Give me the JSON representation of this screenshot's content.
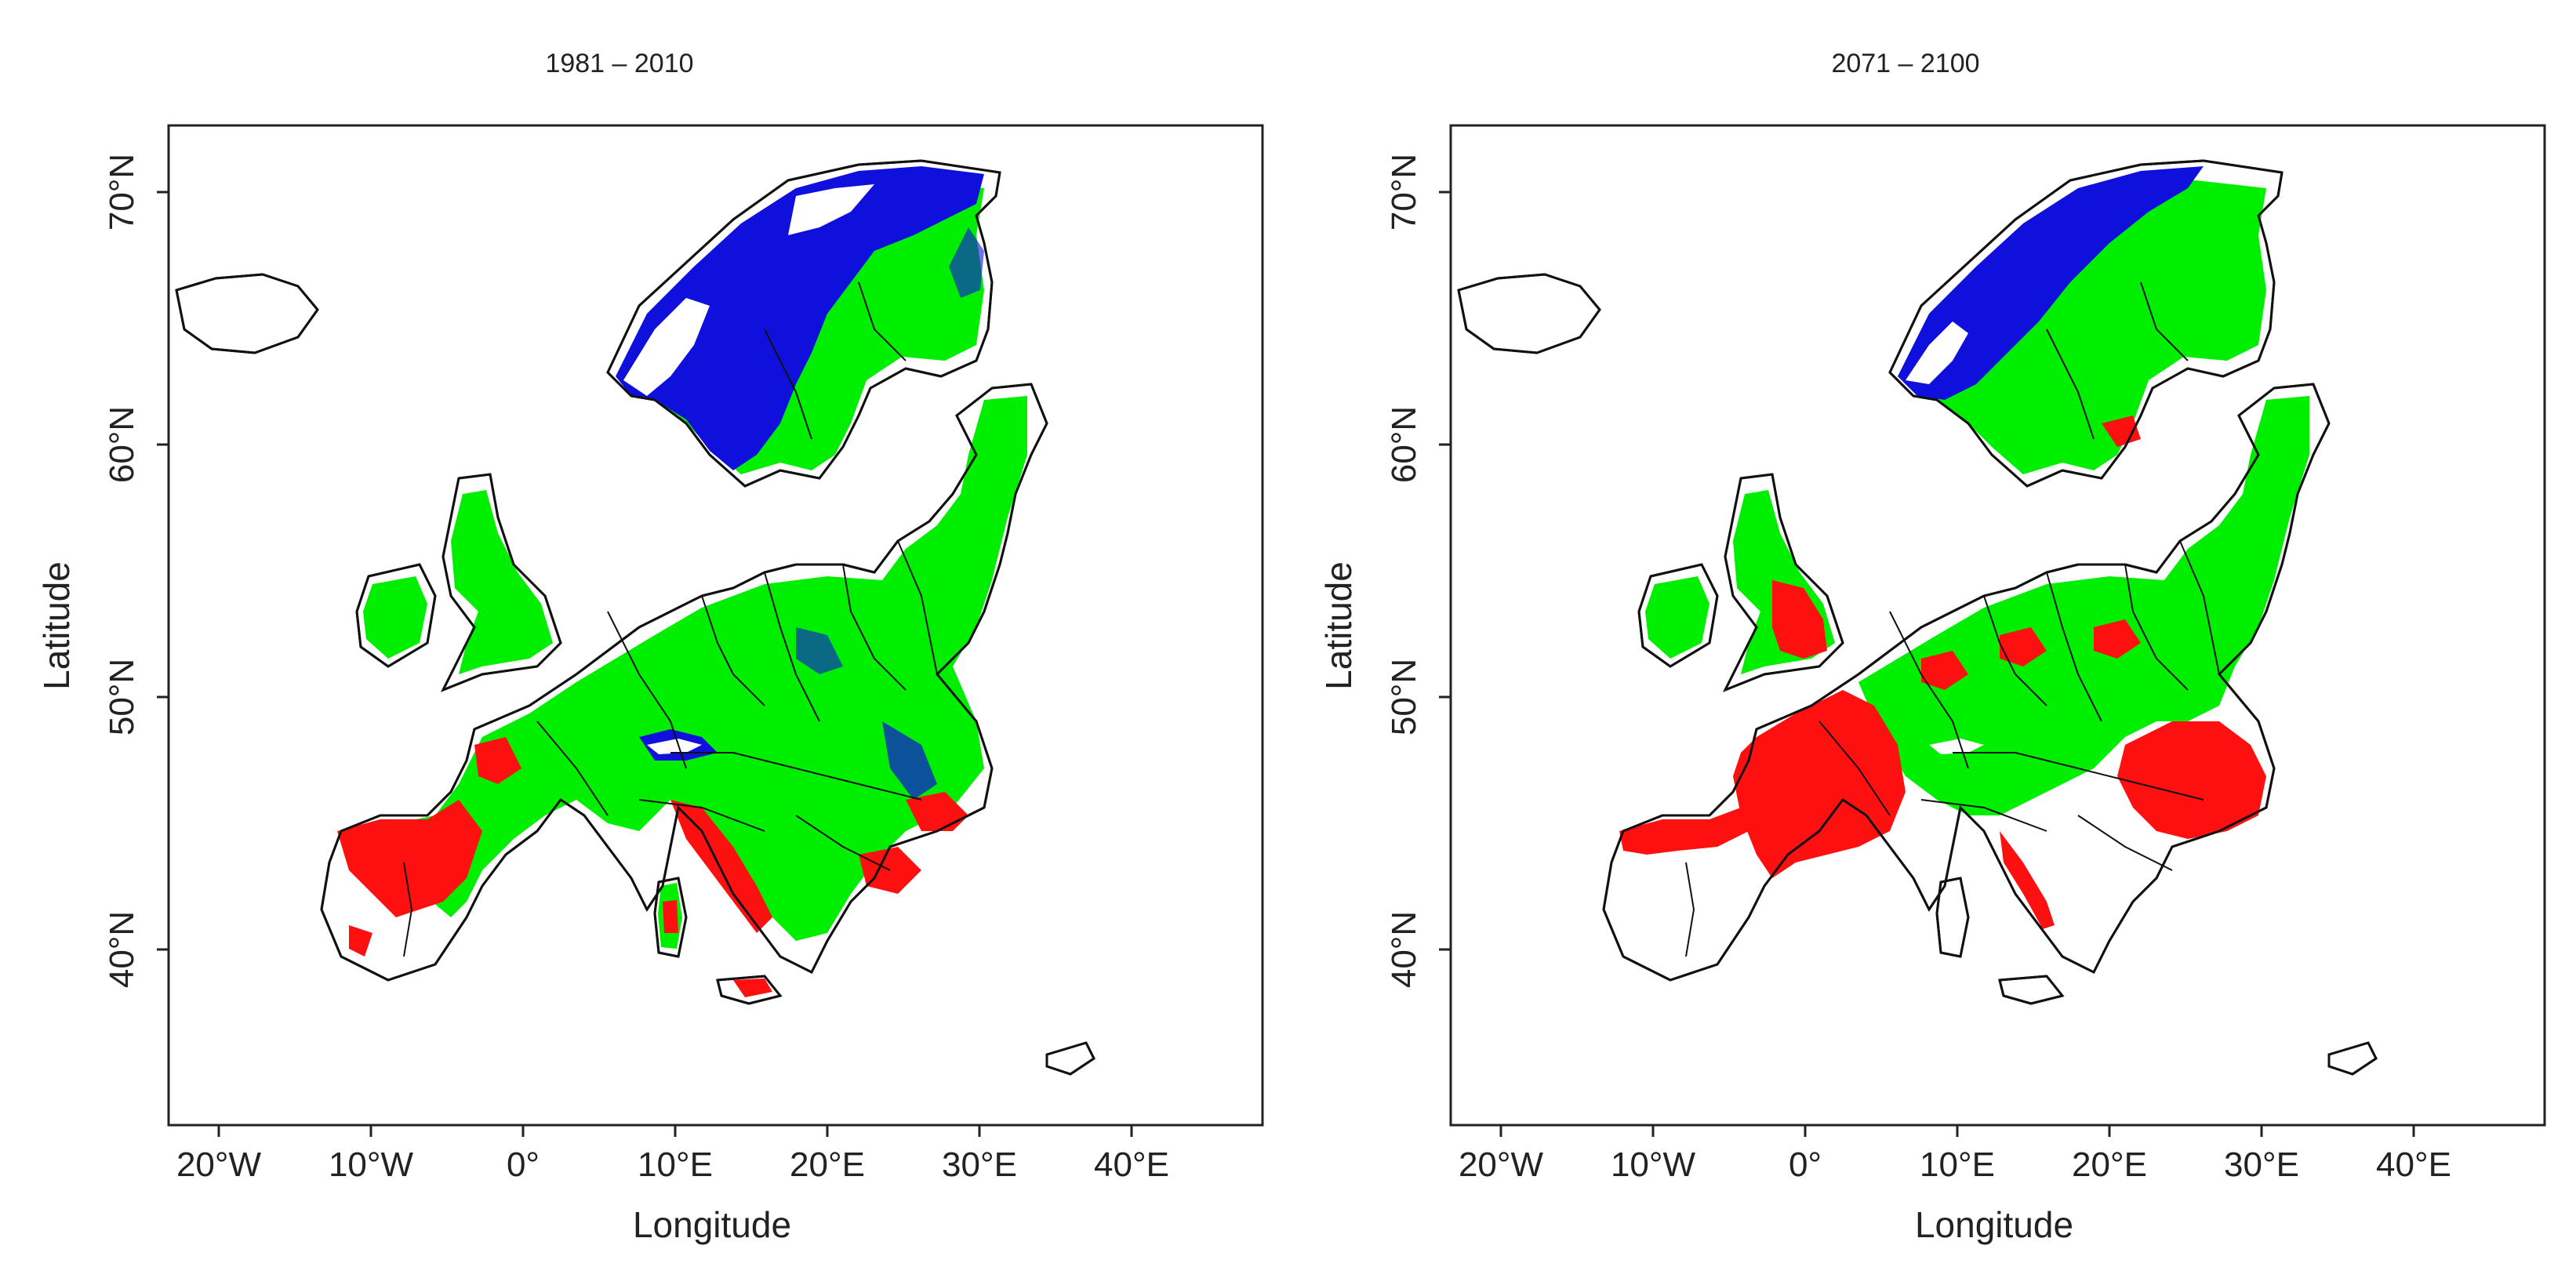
{
  "panels": [
    {
      "title": "1981 – 2010",
      "xlabel": "Longitude",
      "ylabel": "Latitude",
      "x_ticks": [
        "20°W",
        "10°W",
        "0°",
        "10°E",
        "20°E",
        "30°E",
        "40°E"
      ],
      "y_ticks": [
        "70°N",
        "60°N",
        "50°N",
        "40°N"
      ]
    },
    {
      "title": "2071 – 2100",
      "xlabel": "Longitude",
      "ylabel": "Latitude",
      "x_ticks": [
        "20°W",
        "10°W",
        "0°",
        "10°E",
        "20°E",
        "30°E",
        "40°E"
      ],
      "y_ticks": [
        "70°N",
        "60°N",
        "50°N",
        "40°N"
      ]
    }
  ],
  "colors": {
    "blue": "#1010dd",
    "green": "#00ee00",
    "red": "#ff1010",
    "land_outline": "#111111"
  }
}
